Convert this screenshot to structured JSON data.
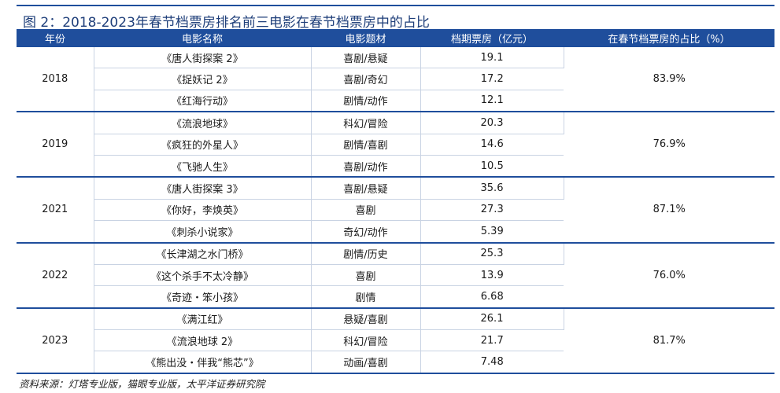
{
  "figure": {
    "title": "图 2：2018-2023年春节档票房排名前三电影在春节档票房中的占比",
    "source": "资料来源：灯塔专业版，猫眼专业版，太平洋证券研究院"
  },
  "table": {
    "headers": [
      "年份",
      "电影名称",
      "电影题材",
      "档期票房（亿元）",
      "在春节档票房的占比（%）"
    ],
    "groups": [
      {
        "year": "2018",
        "share": "83.9%",
        "films": [
          {
            "name": "《唐人街探案 2》",
            "genre": "喜剧/悬疑",
            "box": "19.1"
          },
          {
            "name": "《捉妖记 2》",
            "genre": "喜剧/奇幻",
            "box": "17.2"
          },
          {
            "name": "《红海行动》",
            "genre": "剧情/动作",
            "box": "12.1"
          }
        ]
      },
      {
        "year": "2019",
        "share": "76.9%",
        "films": [
          {
            "name": "《流浪地球》",
            "genre": "科幻/冒险",
            "box": "20.3"
          },
          {
            "name": "《疯狂的外星人》",
            "genre": "剧情/喜剧",
            "box": "14.6"
          },
          {
            "name": "《飞驰人生》",
            "genre": "喜剧/动作",
            "box": "10.5"
          }
        ]
      },
      {
        "year": "2021",
        "share": "87.1%",
        "films": [
          {
            "name": "《唐人街探案 3》",
            "genre": "喜剧/悬疑",
            "box": "35.6"
          },
          {
            "name": "《你好，李焕英》",
            "genre": "喜剧",
            "box": "27.3"
          },
          {
            "name": "《刺杀小说家》",
            "genre": "奇幻/动作",
            "box": "5.39"
          }
        ]
      },
      {
        "year": "2022",
        "share": "76.0%",
        "films": [
          {
            "name": "《长津湖之水门桥》",
            "genre": "剧情/历史",
            "box": "25.3"
          },
          {
            "name": "《这个杀手不太冷静》",
            "genre": "喜剧",
            "box": "13.9"
          },
          {
            "name": "《奇迹・笨小孩》",
            "genre": "剧情",
            "box": "6.68"
          }
        ]
      },
      {
        "year": "2023",
        "share": "81.7%",
        "films": [
          {
            "name": "《满江红》",
            "genre": "悬疑/喜剧",
            "box": "26.1"
          },
          {
            "name": "《流浪地球 2》",
            "genre": "科幻/冒险",
            "box": "21.7"
          },
          {
            "name": "《熊出没・伴我“熊芯”》",
            "genre": "动画/喜剧",
            "box": "7.48"
          }
        ]
      }
    ]
  }
}
